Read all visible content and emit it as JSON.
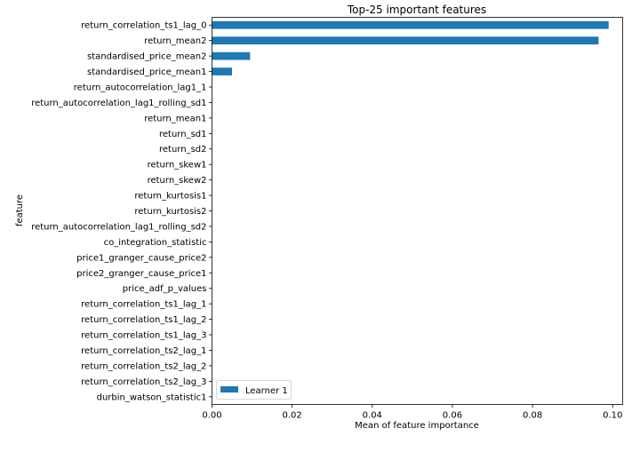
{
  "chart_data": {
    "type": "bar",
    "orientation": "horizontal",
    "title": "Top-25 important features",
    "xlabel": "Mean of feature importance",
    "ylabel": "feature",
    "xlim": [
      0,
      0.1025
    ],
    "xticks": [
      "0.00",
      "0.02",
      "0.04",
      "0.06",
      "0.08",
      "0.10"
    ],
    "grid": false,
    "legend_position": "lower-left",
    "colors": {
      "bar": "#1f77b4",
      "axis": "#000000",
      "background": "#ffffff",
      "legend_border": "#cccccc"
    },
    "categories": [
      "return_correlation_ts1_lag_0",
      "return_mean2",
      "standardised_price_mean2",
      "standardised_price_mean1",
      "return_autocorrelation_lag1_1",
      "return_autocorrelation_lag1_rolling_sd1",
      "return_mean1",
      "return_sd1",
      "return_sd2",
      "return_skew1",
      "return_skew2",
      "return_kurtosis1",
      "return_kurtosis2",
      "return_autocorrelation_lag1_rolling_sd2",
      "co_integration_statistic",
      "price1_granger_cause_price2",
      "price2_granger_cause_price1",
      "price_adf_p_values",
      "return_correlation_ts1_lag_1",
      "return_correlation_ts1_lag_2",
      "return_correlation_ts1_lag_3",
      "return_correlation_ts2_lag_1",
      "return_correlation_ts2_lag_2",
      "return_correlation_ts2_lag_3",
      "durbin_watson_statistic1"
    ],
    "series": [
      {
        "name": "Learner 1",
        "values": [
          0.099,
          0.0965,
          0.0095,
          0.005,
          0,
          0,
          0,
          0,
          0,
          0,
          0,
          0,
          0,
          0,
          0,
          0,
          0,
          0,
          0,
          0,
          0,
          0,
          0,
          0,
          0
        ]
      }
    ]
  }
}
